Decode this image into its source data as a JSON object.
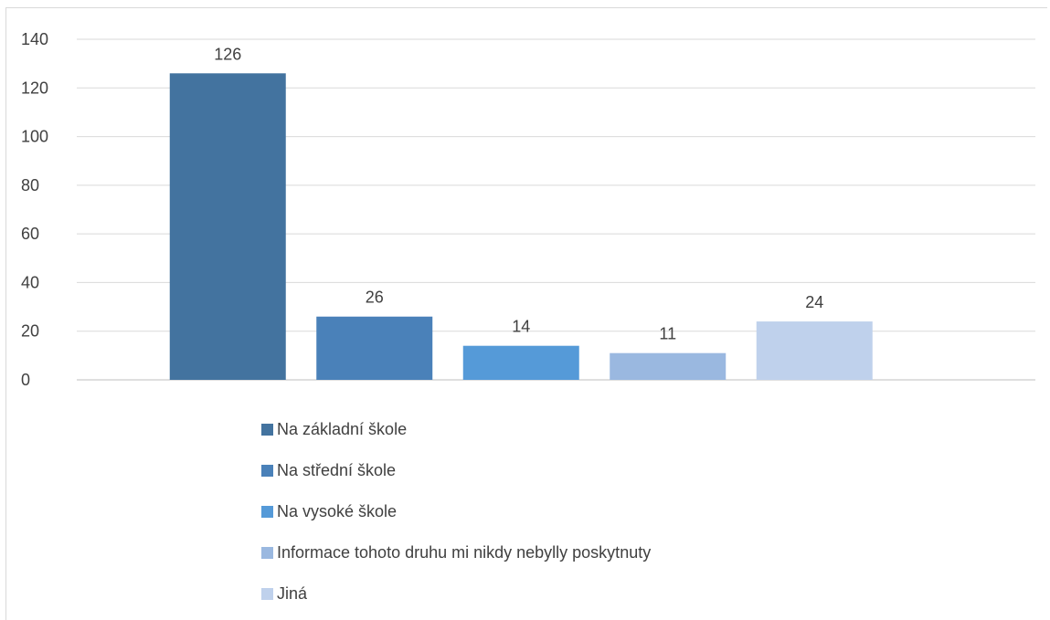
{
  "chart_data": {
    "type": "bar",
    "categories": [
      "Na základní škole",
      "Na střední škole",
      "Na vysoké škole",
      "Informace tohoto druhu mi nikdy nebylly poskytnuty",
      "Jiná"
    ],
    "values": [
      126,
      26,
      14,
      11,
      24
    ],
    "colors": [
      "#43739f",
      "#4a81b9",
      "#559ad8",
      "#9ab8e0",
      "#bfd1ec"
    ],
    "ylim": [
      0,
      140
    ],
    "yticks": [
      0,
      20,
      40,
      60,
      80,
      100,
      120,
      140
    ],
    "grid": true,
    "legend_position": "bottom",
    "title": "",
    "xlabel": "",
    "ylabel": ""
  }
}
